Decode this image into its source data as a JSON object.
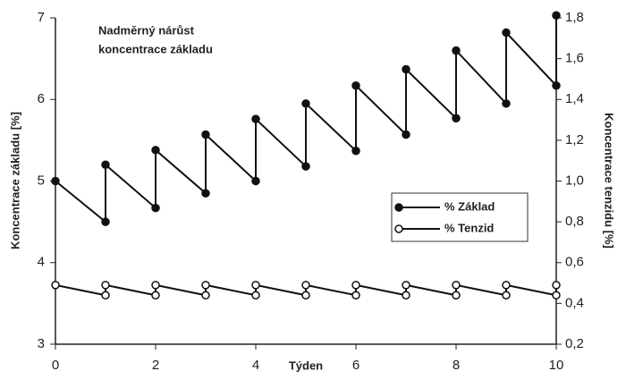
{
  "chart_data": {
    "type": "line",
    "title": [
      "Nadměrný nárůst",
      "koncentrace základu"
    ],
    "x_label": "Týden",
    "y_label": "Koncentrace základu [%]",
    "y2_label": "Koncentrace tenzidu [%]",
    "x": [
      0,
      1,
      1,
      2,
      2,
      3,
      3,
      4,
      4,
      5,
      5,
      6,
      6,
      7,
      7,
      8,
      8,
      9,
      9,
      10,
      10
    ],
    "series": [
      {
        "name": "% Základ",
        "color": "#111111",
        "marker": "filled",
        "values": [
          5.0,
          4.5,
          5.2,
          4.67,
          5.38,
          4.85,
          5.57,
          5.0,
          5.76,
          5.18,
          5.95,
          5.37,
          6.17,
          5.57,
          6.37,
          5.77,
          6.6,
          5.95,
          6.82,
          6.17,
          7.03
        ]
      },
      {
        "name": "% Tenzid",
        "color": "#111111",
        "marker": "open",
        "axis": "y2",
        "values": [
          0.49,
          0.44,
          0.49,
          0.44,
          0.49,
          0.44,
          0.49,
          0.44,
          0.49,
          0.44,
          0.49,
          0.44,
          0.49,
          0.44,
          0.49,
          0.44,
          0.49,
          0.44,
          0.49,
          0.44,
          0.49
        ]
      }
    ],
    "xlim": [
      0,
      10
    ],
    "xticks": [
      0,
      2,
      4,
      6,
      8,
      10
    ],
    "ylim": [
      3,
      7
    ],
    "yticks": [
      3,
      4,
      5,
      6,
      7
    ],
    "y2lim": [
      0.2,
      1.8
    ],
    "y2ticks": [
      {
        "value": 0.2,
        "label": "0,2"
      },
      {
        "value": 0.4,
        "label": "0,4"
      },
      {
        "value": 0.6,
        "label": "0,6"
      },
      {
        "value": 0.8,
        "label": "0,8"
      },
      {
        "value": 1.0,
        "label": "1,0"
      },
      {
        "value": 1.2,
        "label": "1,2"
      },
      {
        "value": 1.4,
        "label": "1,4"
      },
      {
        "value": 1.6,
        "label": "1,6"
      },
      {
        "value": 1.8,
        "label": "1,8"
      }
    ],
    "grid": false
  }
}
